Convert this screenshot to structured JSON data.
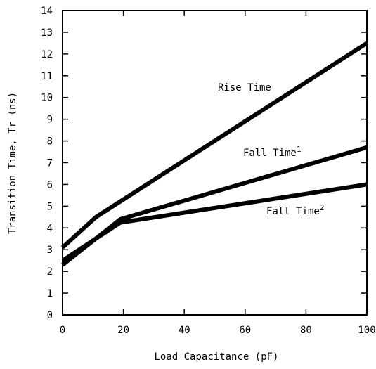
{
  "chart_data": {
    "type": "line",
    "title": "",
    "xlabel": "Load Capacitance (pF)",
    "ylabel": "Transition Time, Tr (ns)",
    "xlim": [
      0,
      100
    ],
    "ylim": [
      0,
      14
    ],
    "x_ticks": [
      0,
      20,
      40,
      60,
      80,
      100
    ],
    "y_ticks": [
      0,
      1,
      2,
      3,
      4,
      5,
      6,
      7,
      8,
      9,
      10,
      11,
      12,
      13,
      14
    ],
    "grid": false,
    "legend": "none",
    "series": [
      {
        "name": "Rise Time",
        "superscript": "",
        "x": [
          0,
          11,
          100
        ],
        "y": [
          3.1,
          4.5,
          12.5
        ]
      },
      {
        "name": "Fall Time",
        "superscript": "1",
        "x": [
          0,
          19,
          100
        ],
        "y": [
          2.3,
          4.4,
          7.7
        ]
      },
      {
        "name": "Fall Time",
        "superscript": "2",
        "x": [
          0,
          19,
          100
        ],
        "y": [
          2.5,
          4.25,
          6.0
        ]
      }
    ],
    "series_color": "#000000"
  }
}
